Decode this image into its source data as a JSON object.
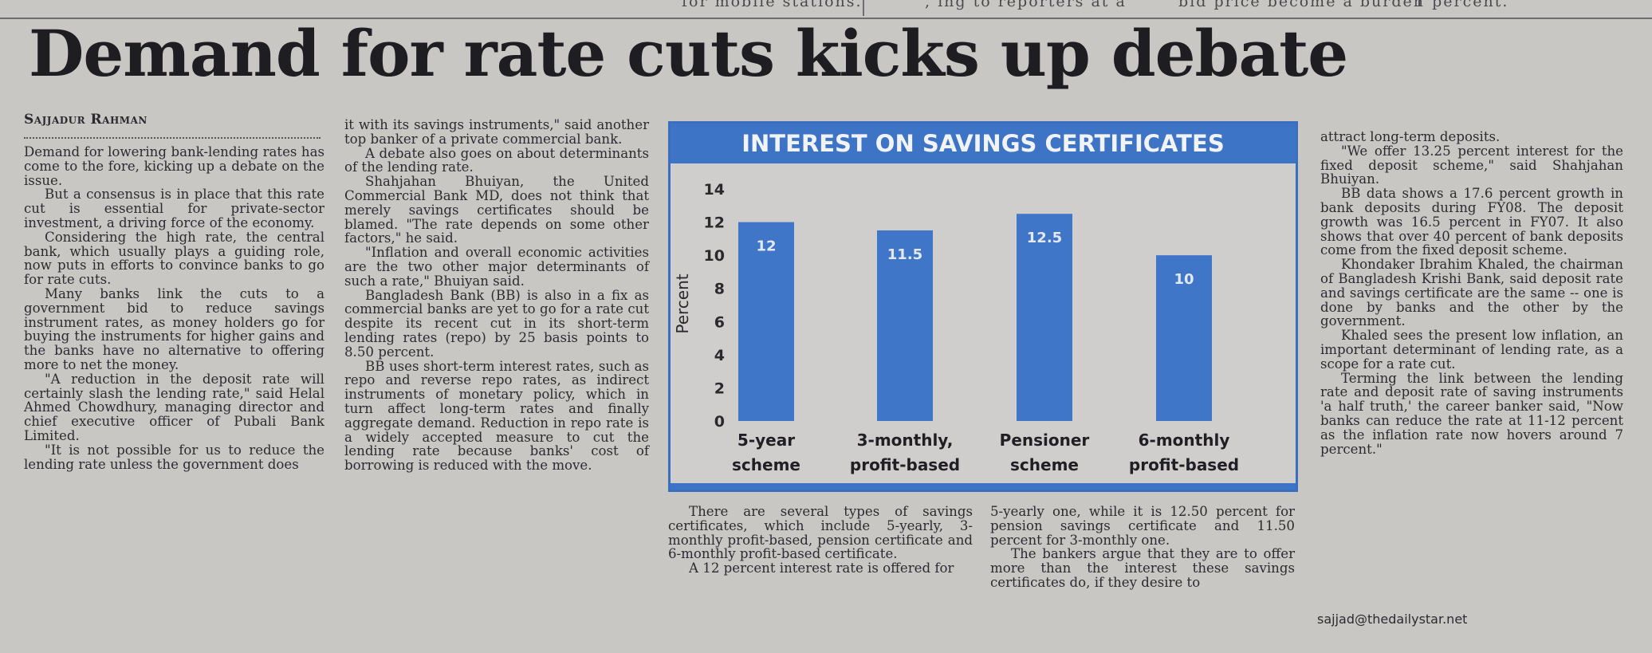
{
  "top_strip": {
    "fragment_1": "for mobile stations.",
    "fragment_2": ", ing to reporters at a",
    "fragment_3": "bid price become a burden",
    "fragment_4": "1 percent."
  },
  "headline": "Demand for rate cuts kicks up debate",
  "byline": "Sajjadur Rahman",
  "column_1": [
    "Demand for lowering bank-lending rates has come to the fore, kicking up a debate on the issue.",
    "But a consensus is in place that this rate cut is essential for private-sector investment, a driving force of the economy.",
    "Considering the high rate, the central bank, which usually plays a guiding role, now puts in efforts to convince banks to go for rate cuts.",
    "Many banks link the cuts to a government bid to reduce savings instrument rates, as money holders go for buying the instruments for higher gains and the banks have no alternative to offering more to net the money.",
    "\"A reduction in the deposit rate will certainly slash the lending rate,\" said Helal Ahmed Chowdhury, managing director and chief executive officer of Pubali Bank Limited.",
    "\"It is not possible for us to reduce the lending rate unless the government does"
  ],
  "column_2": [
    "it with its savings instruments,\" said another top banker of a private commercial bank.",
    "A debate also goes on about determinants of the lending rate.",
    "Shahjahan Bhuiyan, the United Commercial Bank MD, does not think that merely savings certificates should be blamed. \"The rate depends on some other factors,\" he said.",
    "\"Inflation and overall economic activities are the two other major determinants of such a rate,\" Bhuiyan said.",
    "Bangladesh Bank (BB) is also in a fix as commercial banks are yet to go for a rate cut despite its recent cut in its short-term lending rates (repo) by 25 basis points to 8.50 percent.",
    "BB uses short-term interest rates, such as repo and reverse repo rates, as indirect instruments of monetary policy, which in turn affect long-term rates and finally aggregate demand. Reduction in repo rate is a widely accepted measure to cut the lending rate because banks' cost of borrowing is reduced with the move."
  ],
  "column_3": [
    "There are several types of savings certificates, which include 5-yearly, 3-monthly profit-based, pension certificate and 6-monthly profit-based certificate.",
    "A 12 percent interest rate is offered for"
  ],
  "column_4": [
    "5-yearly one, while it is 12.50 percent for pension savings certificate and 11.50 percent for 3-monthly one.",
    "The bankers argue that they are to offer more than the interest these savings certificates do, if they desire to"
  ],
  "column_5": [
    "attract long-term deposits.",
    "\"We offer 13.25 percent interest for the fixed deposit scheme,\" said Shahjahan Bhuiyan.",
    "BB data shows a 17.6 percent growth in bank deposits during FY08. The deposit growth was 16.5 percent in FY07. It also shows that over 40 percent of bank deposits come from the fixed deposit scheme.",
    "Khondaker Ibrahim Khaled, the chairman of Bangladesh Krishi Bank, said deposit rate and savings certificate are the same -- one is done by banks and the other by the government.",
    "Khaled sees the present low inflation, an important determinant of lending rate, as a scope for a rate cut.",
    "Terming the link between the lending rate and deposit rate of saving instruments 'a half truth,' the career banker said, \"Now banks can reduce the rate at 11-12 percent as the inflation rate now hovers around 7 percent.\""
  ],
  "email": "sajjad@thedailystar.net",
  "chart_data": {
    "type": "bar",
    "title": "INTEREST ON SAVINGS CERTIFICATES",
    "ylabel": "Percent",
    "xlabel": "",
    "categories": [
      [
        "5-year",
        "scheme"
      ],
      [
        "3-monthly,",
        "profit-based"
      ],
      [
        "Pensioner",
        "scheme"
      ],
      [
        "6-monthly",
        "profit-based"
      ]
    ],
    "values": [
      12,
      11.5,
      12.5,
      10
    ],
    "data_labels": [
      "12",
      "11.5",
      "12.5",
      "10"
    ],
    "yticks": [
      "0",
      "2",
      "4",
      "6",
      "8",
      "10",
      "12",
      "14"
    ],
    "ylim": [
      0,
      14
    ],
    "grid": false,
    "colors": {
      "bar": "#3f76c8",
      "title_bar": "#3e74c6",
      "bar_label": "#e4e8f0"
    }
  }
}
